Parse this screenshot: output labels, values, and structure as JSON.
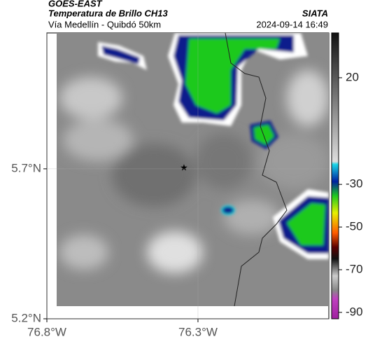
{
  "header": {
    "title": "GOES-EAST",
    "subtitle": "Temperatura de Brillo CH13",
    "place": "Vía Medellín - Quibdó 50km",
    "source": "SIATA",
    "datetime": "2024-09-14 16:49"
  },
  "map": {
    "lon_lim": [
      -76.8,
      -75.867
    ],
    "lat_lim": [
      5.2,
      6.153
    ],
    "lon_ticks": [
      {
        "value": -76.8,
        "label": "76.8°W"
      },
      {
        "value": -76.3,
        "label": "76.3°W"
      }
    ],
    "lat_ticks": [
      {
        "value": 5.7,
        "label": "5.7°N"
      },
      {
        "value": 5.2,
        "label": "5.2°N"
      }
    ]
  },
  "colorbar": {
    "lim": [
      -93,
      41
    ],
    "ticks": [
      20,
      -30,
      -50,
      -70,
      -90
    ]
  }
}
